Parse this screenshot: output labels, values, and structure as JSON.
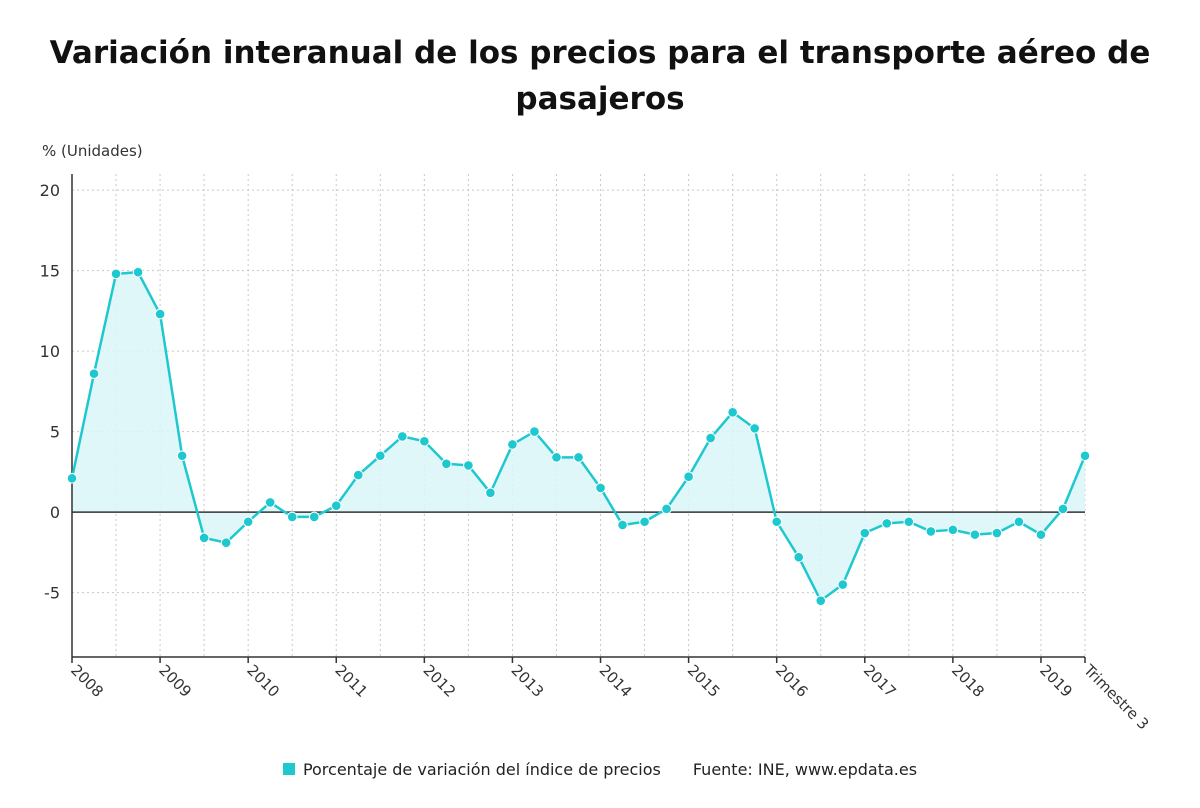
{
  "title": "Variación interanual de los precios para el transporte aéreo de pasajeros",
  "unit_label": "% (Unidades)",
  "legend": {
    "series_label": "Porcentaje de variación del índice de precios",
    "source": "Fuente: INE, www.epdata.es"
  },
  "colors": {
    "series": "#1ec8cf",
    "fill": "#d9f6f8",
    "grid": "#c8c8c8",
    "axis": "#333333"
  },
  "chart_data": {
    "type": "area",
    "title": "Variación interanual de los precios para el transporte aéreo de pasajeros",
    "ylabel": "% (Unidades)",
    "ylim": [
      -9,
      21
    ],
    "yticks": [
      20,
      15,
      10,
      5,
      0,
      -5
    ],
    "grid": true,
    "legend_position": "bottom",
    "x_tick_labels": [
      "2008",
      "2009",
      "2010",
      "2011",
      "2012",
      "2013",
      "2014",
      "2015",
      "2016",
      "2017",
      "2018",
      "2019",
      "Trimestre 3"
    ],
    "series": [
      {
        "name": "Porcentaje de variación del índice de precios",
        "values": [
          2.1,
          8.6,
          14.8,
          14.9,
          12.3,
          3.5,
          -1.6,
          -1.9,
          -0.6,
          0.6,
          -0.3,
          -0.3,
          0.4,
          2.3,
          3.5,
          4.7,
          4.4,
          3.0,
          2.9,
          1.2,
          4.2,
          5.0,
          3.4,
          3.4,
          1.5,
          -0.8,
          -0.6,
          0.2,
          2.2,
          4.6,
          6.2,
          5.2,
          -0.6,
          -2.8,
          -5.5,
          -4.5,
          -1.3,
          -0.7,
          -0.6,
          -1.2,
          -1.1,
          -1.4,
          -1.3,
          -0.6,
          -1.4,
          0.2,
          3.5
        ]
      }
    ]
  }
}
